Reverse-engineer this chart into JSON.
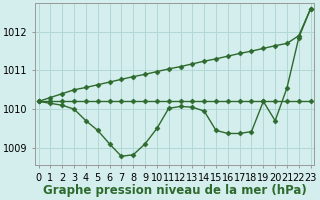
{
  "hours": [
    0,
    1,
    2,
    3,
    4,
    5,
    6,
    7,
    8,
    9,
    10,
    11,
    12,
    13,
    14,
    15,
    16,
    17,
    18,
    19,
    20,
    21,
    22,
    23
  ],
  "line_flat": [
    1010.2,
    1010.2,
    1010.2,
    1010.2,
    1010.2,
    1010.2,
    1010.2,
    1010.2,
    1010.2,
    1010.2,
    1010.2,
    1010.2,
    1010.2,
    1010.2,
    1010.2,
    1010.2,
    1010.2,
    1010.2,
    1010.2,
    1010.2,
    1010.2,
    1010.2,
    1010.2,
    1010.2
  ],
  "line_diagonal": [
    1010.2,
    1010.3,
    1010.4,
    1010.5,
    1010.56,
    1010.63,
    1010.7,
    1010.77,
    1010.84,
    1010.9,
    1010.97,
    1011.04,
    1011.1,
    1011.17,
    1011.24,
    1011.3,
    1011.37,
    1011.44,
    1011.5,
    1011.57,
    1011.64,
    1011.7,
    1011.9,
    1012.6
  ],
  "line_wavy": [
    1010.2,
    1010.15,
    1010.1,
    1010.0,
    1009.7,
    1009.45,
    1009.1,
    1008.78,
    1008.82,
    1009.1,
    1009.5,
    1010.02,
    1010.07,
    1010.05,
    1009.95,
    1009.45,
    1009.37,
    1009.37,
    1009.42,
    1010.2,
    1009.7,
    1010.55,
    1011.85,
    1012.6
  ],
  "bg_color": "#d4eeed",
  "grid_color": "#b0d8d5",
  "line_color": "#2d6a2d",
  "marker": "D",
  "marker_size": 2.5,
  "linewidth_main": 1.0,
  "ylim": [
    1008.55,
    1012.75
  ],
  "yticks": [
    1009,
    1010,
    1011,
    1012
  ],
  "xlim": [
    -0.3,
    23.3
  ],
  "xlabel": "Graphe pression niveau de la mer (hPa)",
  "xlabel_fontsize": 8.5,
  "tick_fontsize": 7,
  "ylabel_fontsize": 7
}
